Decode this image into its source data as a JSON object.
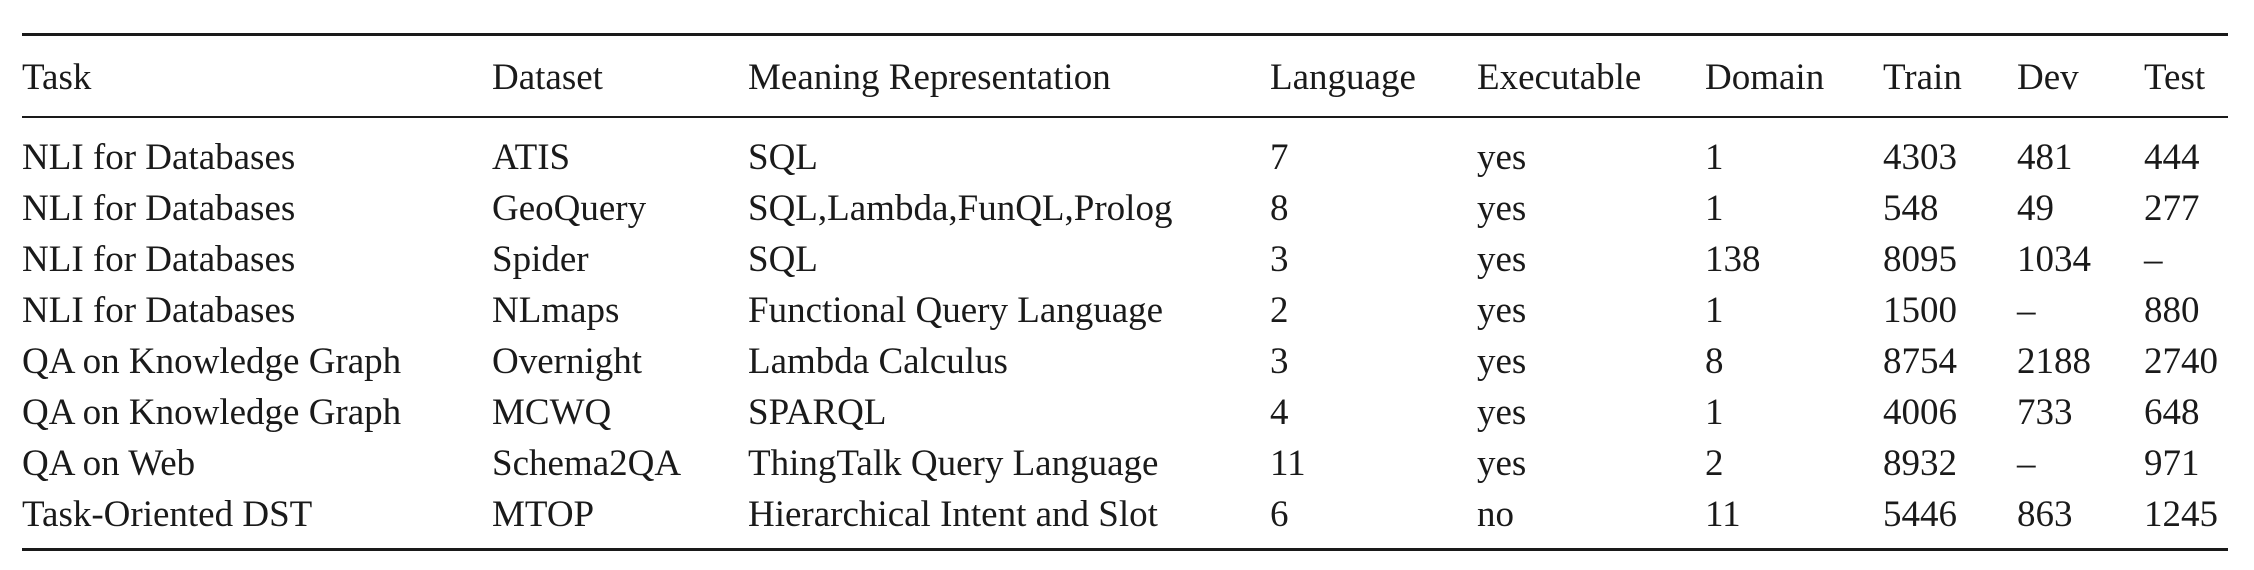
{
  "headers": {
    "task": "Task",
    "dataset": "Dataset",
    "meaning_representation": "Meaning Representation",
    "language": "Language",
    "executable": "Executable",
    "domain": "Domain",
    "train": "Train",
    "dev": "Dev",
    "test": "Test"
  },
  "rows": [
    {
      "task": "NLI for Databases",
      "dataset": "ATIS",
      "mr": "SQL",
      "language": "7",
      "executable": "yes",
      "domain": "1",
      "train": "4303",
      "dev": "481",
      "test": "444"
    },
    {
      "task": "NLI for Databases",
      "dataset": "GeoQuery",
      "mr": "SQL,Lambda,FunQL,Prolog",
      "language": "8",
      "executable": "yes",
      "domain": "1",
      "train": "548",
      "dev": "49",
      "test": "277"
    },
    {
      "task": "NLI for Databases",
      "dataset": "Spider",
      "mr": "SQL",
      "language": "3",
      "executable": "yes",
      "domain": "138",
      "train": "8095",
      "dev": "1034",
      "test": "–"
    },
    {
      "task": "NLI for Databases",
      "dataset": "NLmaps",
      "mr": "Functional Query Language",
      "language": "2",
      "executable": "yes",
      "domain": "1",
      "train": "1500",
      "dev": "–",
      "test": "880"
    },
    {
      "task": "QA on Knowledge Graph",
      "dataset": "Overnight",
      "mr": "Lambda Calculus",
      "language": "3",
      "executable": "yes",
      "domain": "8",
      "train": "8754",
      "dev": "2188",
      "test": "2740"
    },
    {
      "task": "QA on Knowledge Graph",
      "dataset": "MCWQ",
      "mr": "SPARQL",
      "language": "4",
      "executable": "yes",
      "domain": "1",
      "train": "4006",
      "dev": "733",
      "test": "648"
    },
    {
      "task": "QA on Web",
      "dataset": "Schema2QA",
      "mr": "ThingTalk Query Language",
      "language": "11",
      "executable": "yes",
      "domain": "2",
      "train": "8932",
      "dev": "–",
      "test": "971"
    },
    {
      "task": "Task-Oriented DST",
      "dataset": "MTOP",
      "mr": "Hierarchical Intent and Slot",
      "language": "6",
      "executable": "no",
      "domain": "11",
      "train": "5446",
      "dev": "863",
      "test": "1245"
    }
  ]
}
